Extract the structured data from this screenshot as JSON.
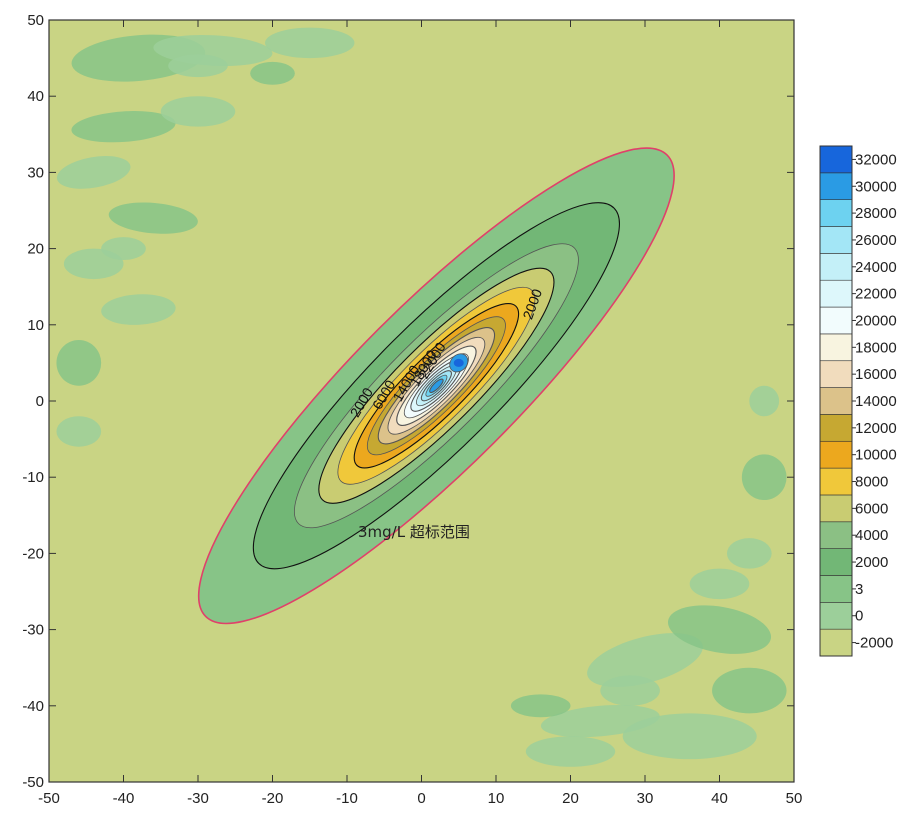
{
  "chart_data": {
    "type": "contour",
    "title": "",
    "xlabel": "",
    "ylabel": "",
    "xlim": [
      -50,
      50
    ],
    "ylim": [
      -50,
      50
    ],
    "xticks": [
      -50,
      -40,
      -30,
      -20,
      -10,
      0,
      10,
      20,
      30,
      40,
      50
    ],
    "yticks": [
      -50,
      -40,
      -30,
      -20,
      -10,
      0,
      10,
      20,
      30,
      40,
      50
    ],
    "grid": false,
    "plume": {
      "center": [
        2,
        2
      ],
      "orientation_deg": 45,
      "peak_value": 32000
    },
    "colorbar": {
      "levels": [
        -2000,
        0,
        3,
        2000,
        4000,
        6000,
        8000,
        10000,
        12000,
        14000,
        16000,
        18000,
        20000,
        22000,
        24000,
        26000,
        28000,
        30000,
        32000
      ],
      "level_labels": [
        "-2000",
        "0",
        "3",
        "2000",
        "4000",
        "6000",
        "8000",
        "10000",
        "12000",
        "14000",
        "16000",
        "18000",
        "20000",
        "22000",
        "24000",
        "26000",
        "28000",
        "30000",
        "32000"
      ],
      "colors": [
        "#c9d484",
        "#9ccf9a",
        "#87c487",
        "#72b776",
        "#8bc084",
        "#c9cc72",
        "#f0c83a",
        "#eca81e",
        "#c6a832",
        "#dcc28a",
        "#f1dcbd",
        "#f8f4e0",
        "#f2fcfd",
        "#ddf7fb",
        "#c4f0f8",
        "#a3e6f6",
        "#6dd2f0",
        "#2a9be4",
        "#1766dc"
      ],
      "placement": "right"
    },
    "contour_labels": [
      "2000",
      "2000",
      "6000",
      "14000",
      "18000",
      "22000"
    ],
    "annotation": "3mg/L 超标范围"
  }
}
